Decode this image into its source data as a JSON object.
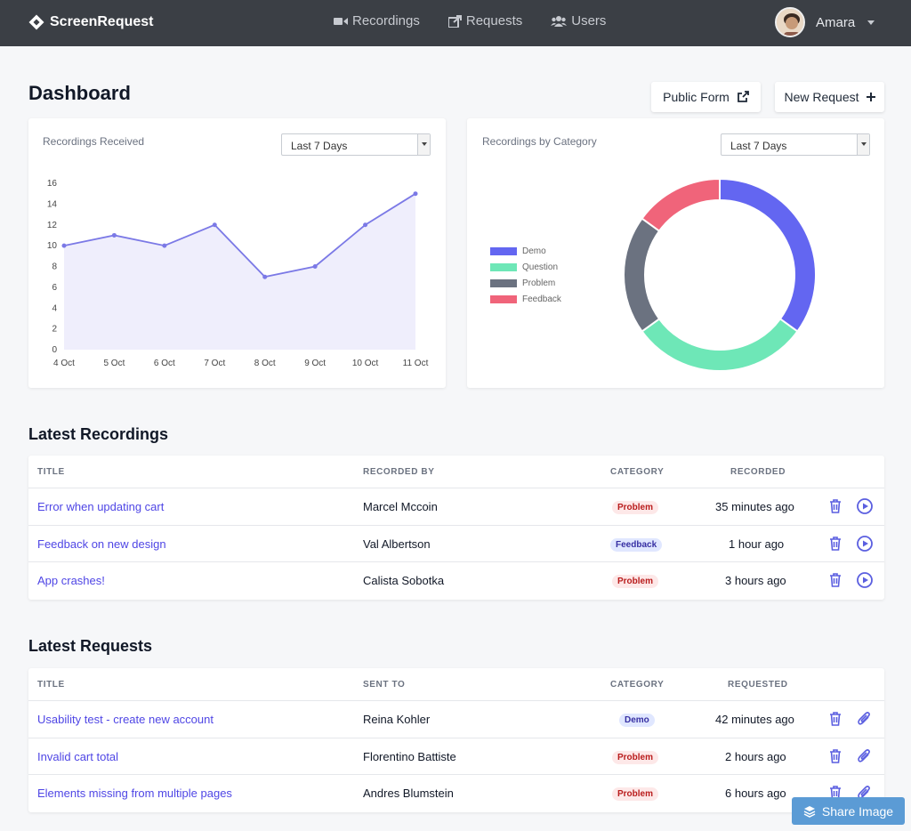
{
  "nav": {
    "brand": "ScreenRequest",
    "links": [
      {
        "label": "Recordings",
        "icon": "video-icon"
      },
      {
        "label": "Requests",
        "icon": "share-icon"
      },
      {
        "label": "Users",
        "icon": "users-icon"
      }
    ],
    "user_name": "Amara"
  },
  "page": {
    "title": "Dashboard",
    "public_form_label": "Public Form",
    "new_request_label": "New Request"
  },
  "charts": {
    "received": {
      "title": "Recordings Received",
      "range": "Last 7 Days"
    },
    "category": {
      "title": "Recordings by Category",
      "range": "Last 7 Days"
    }
  },
  "chart_data": [
    {
      "type": "area",
      "title": "Recordings Received",
      "categories": [
        "4 Oct",
        "5 Oct",
        "6 Oct",
        "7 Oct",
        "8 Oct",
        "9 Oct",
        "10 Oct",
        "11 Oct"
      ],
      "values": [
        10,
        11,
        10,
        12,
        7,
        8,
        12,
        15
      ],
      "yticks": [
        0,
        2,
        4,
        6,
        8,
        10,
        12,
        14,
        16
      ],
      "ylim": [
        0,
        16
      ],
      "line_color": "#7b79e6",
      "fill_color": "#efeefc",
      "grid": false
    },
    {
      "type": "pie",
      "title": "Recordings by Category",
      "donut": true,
      "legend_position": "left",
      "labels": [
        "Demo",
        "Question",
        "Problem",
        "Feedback"
      ],
      "values": [
        35,
        30,
        20,
        15
      ],
      "colors": [
        "#6366f1",
        "#6ee7b7",
        "#6b7280",
        "#f0647a"
      ]
    }
  ],
  "recordings": {
    "title": "Latest Recordings",
    "headers": [
      "TITLE",
      "RECORDED BY",
      "CATEGORY",
      "RECORDED"
    ],
    "rows": [
      {
        "title": "Error when updating cart",
        "by": "Marcel Mccoin",
        "category": "Problem",
        "time": "35 minutes ago"
      },
      {
        "title": "Feedback on new design",
        "by": "Val Albertson",
        "category": "Feedback",
        "time": "1 hour ago"
      },
      {
        "title": "App crashes!",
        "by": "Calista Sobotka",
        "category": "Problem",
        "time": "3 hours ago"
      }
    ]
  },
  "requests": {
    "title": "Latest Requests",
    "headers": [
      "TITLE",
      "SENT TO",
      "CATEGORY",
      "REQUESTED"
    ],
    "rows": [
      {
        "title": "Usability test - create new account",
        "to": "Reina Kohler",
        "category": "Demo",
        "time": "42 minutes ago"
      },
      {
        "title": "Invalid cart total",
        "to": "Florentino Battiste",
        "category": "Problem",
        "time": "2 hours ago"
      },
      {
        "title": "Elements missing from multiple pages",
        "to": "Andres Blumstein",
        "category": "Problem",
        "time": "6 hours ago"
      }
    ]
  },
  "share": {
    "label": "Share Image"
  },
  "colors": {
    "accent": "#4f46e5",
    "nav_bg": "#3b3f45",
    "share_bg": "#5b9bd5"
  }
}
